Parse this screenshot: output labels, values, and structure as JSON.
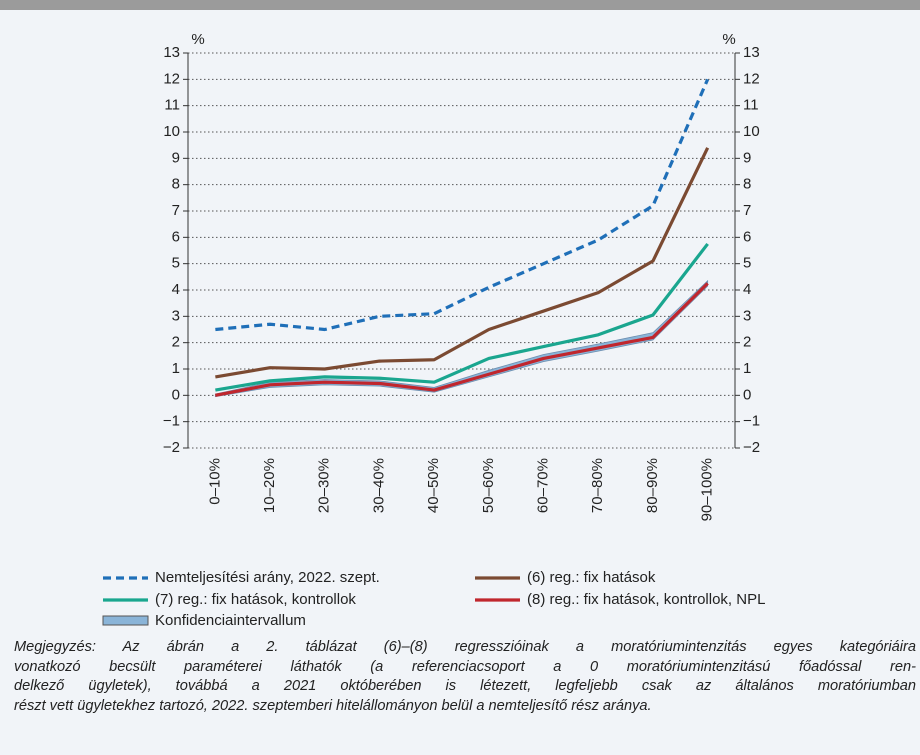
{
  "chart_data": {
    "type": "line",
    "y_unit": "%",
    "y2_unit": "%",
    "categories": [
      "0–10%",
      "10–20%",
      "20–30%",
      "30–40%",
      "40–50%",
      "50–60%",
      "60–70%",
      "70–80%",
      "80–90%",
      "90–100%"
    ],
    "ylim": [
      -2,
      13
    ],
    "yticks": [
      {
        "value": -2,
        "label": "−2"
      },
      {
        "value": -1,
        "label": "−1"
      },
      0,
      1,
      2,
      3,
      4,
      5,
      6,
      7,
      8,
      9,
      10,
      11,
      12,
      13
    ],
    "y2lim": [
      -2,
      13
    ],
    "y2ticks": [
      {
        "value": -2,
        "label": "−2"
      },
      {
        "value": -1,
        "label": "−1"
      },
      0,
      1,
      2,
      3,
      4,
      5,
      6,
      7,
      8,
      9,
      10,
      11,
      12,
      13
    ],
    "grid": true,
    "band": {
      "name": "Konfidenciaintervallum",
      "color": "#8ab4d8",
      "lower": [
        -0.05,
        0.3,
        0.4,
        0.35,
        0.12,
        0.7,
        1.28,
        1.68,
        2.1,
        4.15
      ],
      "upper": [
        0.05,
        0.5,
        0.6,
        0.55,
        0.3,
        0.95,
        1.55,
        1.95,
        2.38,
        4.35
      ]
    },
    "series": [
      {
        "name": "Nemteljesítési arány, 2022. szept.",
        "color": "#1f6fb8",
        "dashed": true,
        "values": [
          2.5,
          2.7,
          2.5,
          3.0,
          3.1,
          4.1,
          5.0,
          5.9,
          7.2,
          12.0
        ]
      },
      {
        "name": "(6) reg.: fix hatások",
        "color": "#7b4a32",
        "values": [
          0.7,
          1.05,
          1.0,
          1.3,
          1.35,
          2.5,
          3.2,
          3.9,
          5.1,
          9.4
        ]
      },
      {
        "name": "(7) reg.: fix hatások, kontrollok",
        "color": "#1aa68f",
        "values": [
          0.2,
          0.55,
          0.7,
          0.65,
          0.5,
          1.4,
          1.85,
          2.3,
          3.05,
          5.75
        ]
      },
      {
        "name": "(8) reg.: fix hatások, kontrollok, NPL",
        "color": "#c0262d",
        "values": [
          0.0,
          0.4,
          0.5,
          0.45,
          0.2,
          0.8,
          1.4,
          1.8,
          2.2,
          4.25
        ]
      }
    ]
  },
  "note": [
    "Megjegyzés: Az ábrán a 2. táblázat (6)–(8) regresszióinak a moratóriumintenzitás egyes kategóriáira",
    "vonatkozó becsült paraméterei láthatók (a referenciacsoport a 0 moratóriumintenzitású főadóssal ren-",
    "delkező ügyletek), továbbá a 2021 októberében is létezett, legfeljebb csak az általános moratóriumban",
    "részt vett ügyletekhez tartozó, 2022. szeptemberi hitelállományon belül a nemteljesítő rész aránya."
  ]
}
